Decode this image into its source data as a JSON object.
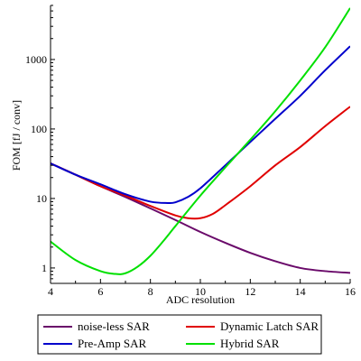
{
  "chart_data": {
    "type": "line",
    "title": "",
    "xlabel": "ADC resolution",
    "ylabel": "FOM [fJ / conv]",
    "xlim": [
      4,
      16
    ],
    "ylim": [
      0.6,
      6000
    ],
    "yscale": "log",
    "x_ticks": [
      4,
      6,
      8,
      10,
      12,
      14,
      16
    ],
    "x_tick_labels": [
      "4",
      "6",
      "8",
      "10",
      "12",
      "14",
      "16"
    ],
    "y_ticks": [
      1,
      10,
      100,
      1000
    ],
    "y_tick_labels": [
      "1",
      "10",
      "100",
      "1000"
    ],
    "grid": false,
    "legend_position": "bottom",
    "series": [
      {
        "name": "noise-less SAR",
        "color": "#6a0a6a",
        "points": [
          [
            4,
            32
          ],
          [
            5,
            22
          ],
          [
            6,
            15
          ],
          [
            7,
            10.5
          ],
          [
            8,
            7.2
          ],
          [
            9,
            4.9
          ],
          [
            10,
            3.3
          ],
          [
            11,
            2.3
          ],
          [
            12,
            1.65
          ],
          [
            13,
            1.25
          ],
          [
            14,
            1.0
          ],
          [
            15,
            0.9
          ],
          [
            16,
            0.85
          ]
        ]
      },
      {
        "name": "Dynamic Latch SAR",
        "color": "#e00000",
        "points": [
          [
            4,
            32
          ],
          [
            5,
            22
          ],
          [
            6,
            15
          ],
          [
            7,
            11
          ],
          [
            8,
            7.8
          ],
          [
            9,
            5.7
          ],
          [
            9.5,
            5.2
          ],
          [
            10,
            5.2
          ],
          [
            10.5,
            6
          ],
          [
            11,
            8
          ],
          [
            12,
            15
          ],
          [
            13,
            30
          ],
          [
            14,
            55
          ],
          [
            15,
            110
          ],
          [
            16,
            210
          ]
        ]
      },
      {
        "name": "Pre-Amp SAR",
        "color": "#0000cc",
        "points": [
          [
            4,
            32
          ],
          [
            5,
            22
          ],
          [
            6,
            16
          ],
          [
            7,
            11.5
          ],
          [
            8,
            9
          ],
          [
            8.7,
            8.6
          ],
          [
            9,
            8.8
          ],
          [
            9.5,
            10.5
          ],
          [
            10,
            14
          ],
          [
            11,
            30
          ],
          [
            12,
            65
          ],
          [
            13,
            140
          ],
          [
            14,
            300
          ],
          [
            15,
            700
          ],
          [
            16,
            1550
          ]
        ]
      },
      {
        "name": "Hybrid SAR",
        "color": "#00e000",
        "points": [
          [
            4,
            2.4
          ],
          [
            5,
            1.3
          ],
          [
            6,
            0.9
          ],
          [
            6.6,
            0.82
          ],
          [
            7,
            0.84
          ],
          [
            7.5,
            1.05
          ],
          [
            8,
            1.5
          ],
          [
            8.5,
            2.4
          ],
          [
            9,
            4
          ],
          [
            10,
            11
          ],
          [
            11,
            28
          ],
          [
            12,
            70
          ],
          [
            13,
            180
          ],
          [
            14,
            500
          ],
          [
            15,
            1500
          ],
          [
            16,
            5500
          ]
        ]
      }
    ]
  }
}
